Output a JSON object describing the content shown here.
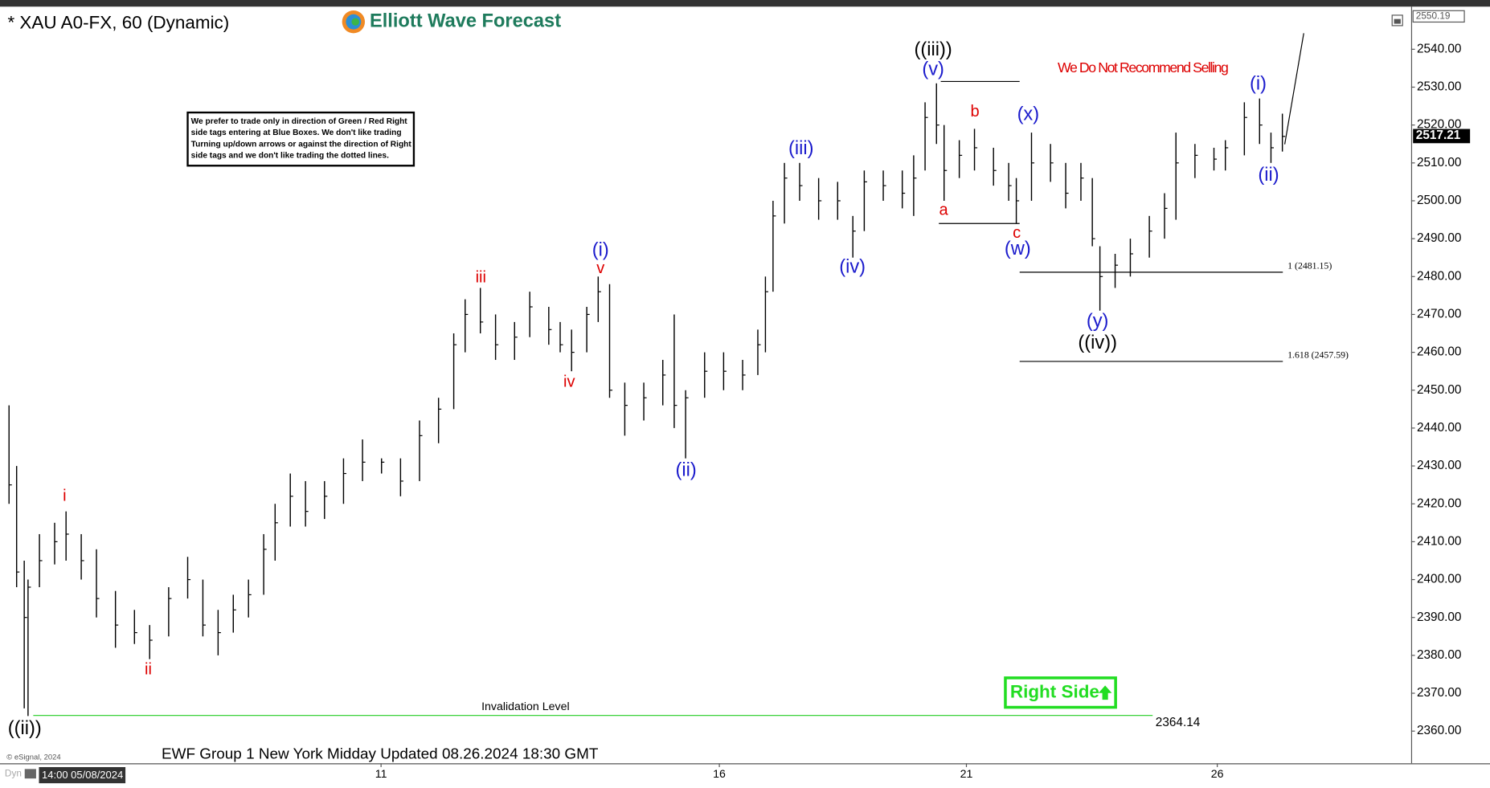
{
  "header": {
    "title": "* XAU A0-FX, 60 (Dynamic)",
    "logo": "Elliott Wave Forecast",
    "warning": "We Do Not Recommend Selling",
    "note": [
      "We prefer to trade only in direction of Green / Red Right",
      "side tags entering at Blue Boxes. We don't like trading",
      "Turning up/down arrows or against the direction of Right",
      "side tags and we don't like trading the dotted lines."
    ],
    "footer": "EWF Group 1 New York Midday Updated 08.26.2024 18:30 GMT",
    "copyright": "© eSignal, 2024",
    "start_time": "14:00 05/08/2024",
    "dyn": "Dyn",
    "right_side": "Right Side"
  },
  "chart_data": {
    "type": "ohlc",
    "color": "#000000",
    "xlim": [
      0,
      370
    ],
    "xticks": [
      {
        "value": 99,
        "label": "11"
      },
      {
        "value": 188,
        "label": "16"
      },
      {
        "value": 253,
        "label": "21"
      },
      {
        "value": 319,
        "label": "26"
      }
    ],
    "ylim": [
      2351.5,
      2550.5
    ],
    "yticks": [
      {
        "value": 2360,
        "label": "2360.00"
      },
      {
        "value": 2370,
        "label": "2370.00"
      },
      {
        "value": 2380,
        "label": "2380.00"
      },
      {
        "value": 2390,
        "label": "2390.00"
      },
      {
        "value": 2400,
        "label": "2400.00"
      },
      {
        "value": 2410,
        "label": "2410.00"
      },
      {
        "value": 2420,
        "label": "2420.00"
      },
      {
        "value": 2430,
        "label": "2430.00"
      },
      {
        "value": 2440,
        "label": "2440.00"
      },
      {
        "value": 2450,
        "label": "2450.00"
      },
      {
        "value": 2460,
        "label": "2460.00"
      },
      {
        "value": 2470,
        "label": "2470.00"
      },
      {
        "value": 2480,
        "label": "2480.00"
      },
      {
        "value": 2490,
        "label": "2490.00"
      },
      {
        "value": 2500,
        "label": "2500.00"
      },
      {
        "value": 2510,
        "label": "2510.00"
      },
      {
        "value": 2520,
        "label": "2520.00"
      },
      {
        "value": 2530,
        "label": "2530.00"
      },
      {
        "value": 2540,
        "label": "2540.00"
      }
    ],
    "x": [
      1,
      3,
      5,
      6,
      9,
      13,
      16,
      20,
      24,
      29,
      34,
      38,
      43,
      48,
      52,
      56,
      60,
      64,
      68,
      71,
      75,
      79,
      84,
      89,
      94,
      99,
      104,
      109,
      114,
      118,
      121,
      125,
      129,
      134,
      138,
      143,
      146,
      149,
      153,
      156,
      159,
      163,
      168,
      173,
      176,
      179,
      184,
      189,
      194,
      198,
      200,
      202,
      205,
      209,
      214,
      219,
      223,
      226,
      231,
      236,
      239,
      242,
      245,
      247,
      251,
      255,
      260,
      264,
      266,
      270,
      275,
      279,
      283,
      286,
      288,
      292,
      296,
      301,
      305,
      308,
      313,
      318,
      321,
      326,
      330,
      333,
      336
    ],
    "high": [
      2446,
      2430,
      2405,
      2400,
      2412,
      2415,
      2418,
      2412,
      2408,
      2397,
      2392,
      2388,
      2398,
      2406,
      2400,
      2392,
      2396,
      2400,
      2412,
      2420,
      2428,
      2426,
      2426,
      2432,
      2437,
      2432,
      2432,
      2442,
      2448,
      2465,
      2474,
      2477,
      2470,
      2468,
      2476,
      2472,
      2468,
      2466,
      2472,
      2480,
      2478,
      2452,
      2452,
      2458,
      2470,
      2450,
      2460,
      2460,
      2458,
      2466,
      2480,
      2500,
      2510,
      2510,
      2506,
      2505,
      2496,
      2508,
      2508,
      2508,
      2512,
      2526,
      2531,
      2520,
      2516,
      2519,
      2514,
      2510,
      2506,
      2518,
      2515,
      2510,
      2510,
      2506,
      2488,
      2486,
      2490,
      2496,
      2502,
      2518,
      2515,
      2514,
      2516,
      2526,
      2527,
      2518,
      2523
    ],
    "low": [
      2420,
      2398,
      2366,
      2364,
      2398,
      2404,
      2405,
      2400,
      2390,
      2382,
      2383,
      2379,
      2385,
      2395,
      2385,
      2380,
      2386,
      2390,
      2396,
      2405,
      2414,
      2414,
      2416,
      2420,
      2426,
      2428,
      2422,
      2426,
      2436,
      2445,
      2460,
      2465,
      2458,
      2458,
      2464,
      2462,
      2460,
      2455,
      2460,
      2468,
      2448,
      2438,
      2442,
      2446,
      2440,
      2432,
      2448,
      2450,
      2450,
      2454,
      2460,
      2476,
      2494,
      2500,
      2495,
      2495,
      2485,
      2492,
      2500,
      2498,
      2496,
      2508,
      2515,
      2500,
      2506,
      2508,
      2504,
      2500,
      2494,
      2500,
      2505,
      2498,
      2500,
      2488,
      2471,
      2477,
      2480,
      2485,
      2490,
      2495,
      2506,
      2508,
      2508,
      2512,
      2515,
      2510,
      2513
    ],
    "close": [
      2425,
      2402,
      2390,
      2398,
      2405,
      2410,
      2412,
      2405,
      2395,
      2388,
      2386,
      2384,
      2395,
      2400,
      2388,
      2386,
      2392,
      2396,
      2408,
      2415,
      2422,
      2418,
      2422,
      2428,
      2431,
      2431,
      2426,
      2438,
      2445,
      2462,
      2470,
      2468,
      2462,
      2464,
      2472,
      2466,
      2462,
      2460,
      2470,
      2476,
      2450,
      2446,
      2448,
      2454,
      2446,
      2448,
      2455,
      2455,
      2454,
      2462,
      2476,
      2496,
      2506,
      2504,
      2500,
      2500,
      2492,
      2505,
      2504,
      2502,
      2506,
      2522,
      2520,
      2508,
      2512,
      2514,
      2508,
      2504,
      2500,
      2510,
      2510,
      2502,
      2506,
      2490,
      2480,
      2483,
      2486,
      2492,
      2498,
      2510,
      2512,
      2511,
      2514,
      2522,
      2520,
      2514,
      2517
    ],
    "price_tags": [
      2550.19,
      2517.21
    ],
    "levels": [
      {
        "value": 2531.5,
        "color": "#000000"
      },
      {
        "value": 2494,
        "color": "#000000"
      },
      {
        "value": 2481.15,
        "label": "1 (2481.15)",
        "color": "#000000"
      },
      {
        "value": 2457.59,
        "label": "1.618 (2457.59)",
        "color": "#000000"
      },
      {
        "value": 2364.14,
        "label": "2364.14",
        "name": "Invalidation Level",
        "color": "#22cc22"
      }
    ],
    "wave_labels": [
      {
        "text": "((ii))",
        "color": "#000000"
      },
      {
        "text": "i",
        "color": "#dd0000"
      },
      {
        "text": "ii",
        "color": "#dd0000"
      },
      {
        "text": "iii",
        "color": "#dd0000"
      },
      {
        "text": "iv",
        "color": "#dd0000"
      },
      {
        "text": "v",
        "color": "#dd0000"
      },
      {
        "text": "(i)",
        "color": "#1a1acc"
      },
      {
        "text": "(ii)",
        "color": "#1a1acc"
      },
      {
        "text": "(iii)",
        "color": "#1a1acc"
      },
      {
        "text": "(iv)",
        "color": "#1a1acc"
      },
      {
        "text": "((iii))",
        "color": "#000000"
      },
      {
        "text": "(v)",
        "color": "#1a1acc"
      },
      {
        "text": "a",
        "color": "#dd0000"
      },
      {
        "text": "b",
        "color": "#dd0000"
      },
      {
        "text": "c",
        "color": "#dd0000"
      },
      {
        "text": "(w)",
        "color": "#1a1acc"
      },
      {
        "text": "(x)",
        "color": "#1a1acc"
      },
      {
        "text": "(y)",
        "color": "#1a1acc"
      },
      {
        "text": "((iv))",
        "color": "#000000"
      },
      {
        "text": "(i)",
        "color": "#1a1acc"
      },
      {
        "text": "(ii)",
        "color": "#1a1acc"
      }
    ]
  }
}
